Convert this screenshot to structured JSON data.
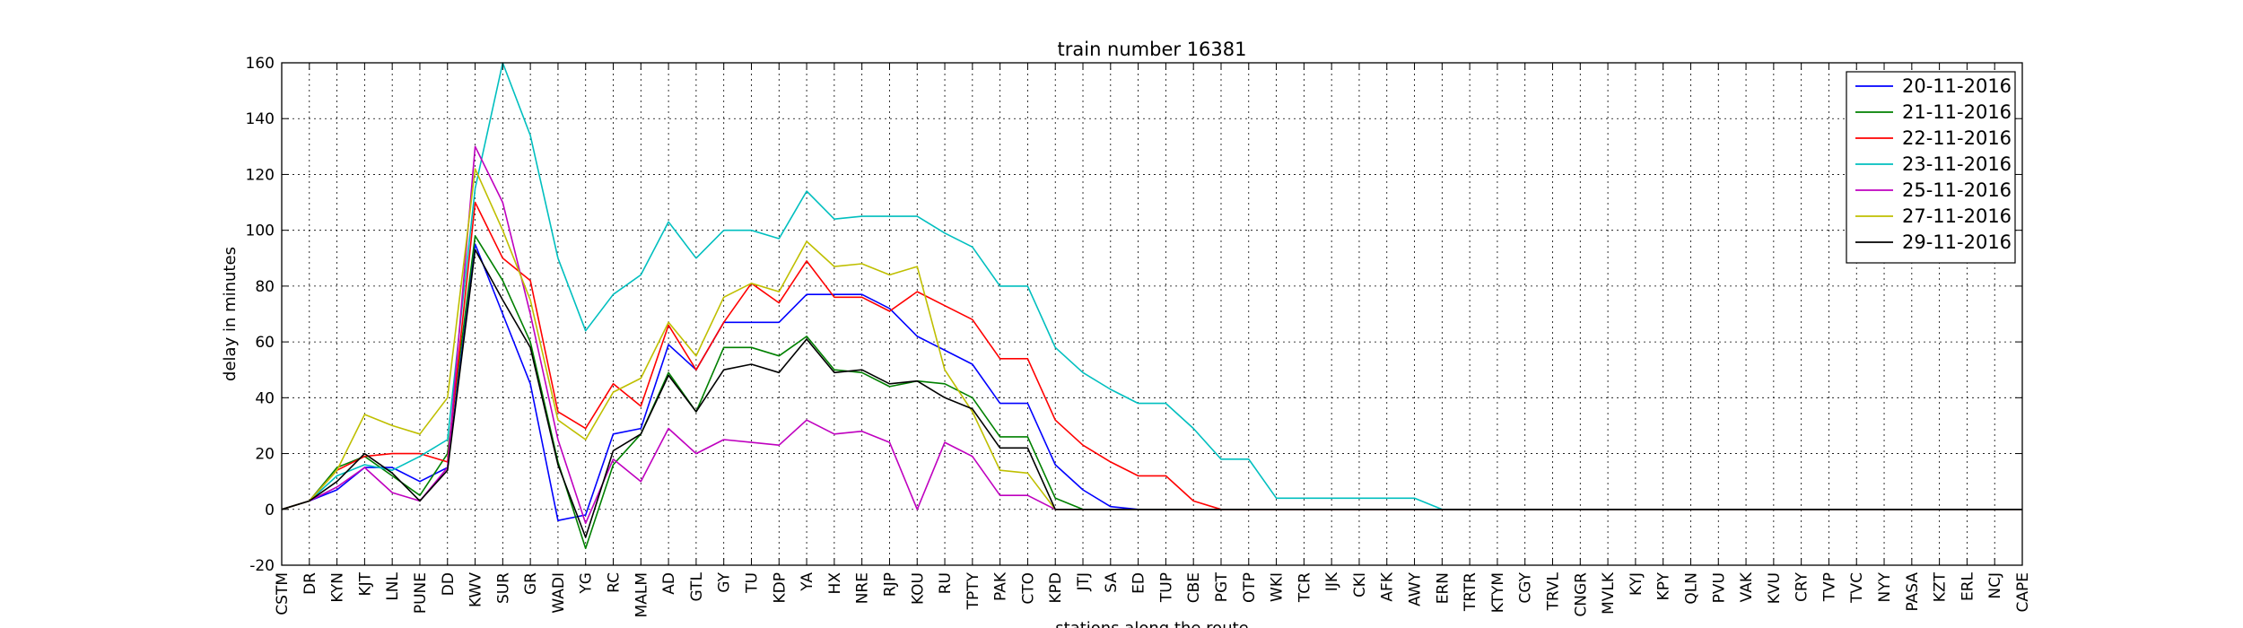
{
  "chart_data": {
    "type": "line",
    "title": "train number 16381",
    "xlabel": "stations along the route",
    "ylabel": "delay in minutes",
    "ylim": [
      -20,
      160
    ],
    "yticks": [
      -20,
      0,
      20,
      40,
      60,
      80,
      100,
      120,
      140,
      160
    ],
    "grid": true,
    "legend_position": "top-right",
    "categories": [
      "CSTM",
      "DR",
      "KYN",
      "KJT",
      "LNL",
      "PUNE",
      "DD",
      "KWV",
      "SUR",
      "GR",
      "WADI",
      "YG",
      "RC",
      "MALM",
      "AD",
      "GTL",
      "GY",
      "TU",
      "KDP",
      "YA",
      "HX",
      "NRE",
      "RJP",
      "KOU",
      "RU",
      "TPTY",
      "PAK",
      "CTO",
      "KPD",
      "JTJ",
      "SA",
      "ED",
      "TUP",
      "CBE",
      "PGT",
      "OTP",
      "WKI",
      "TCR",
      "IJK",
      "CKI",
      "AFK",
      "AWY",
      "ERN",
      "TRTR",
      "KTYM",
      "CGY",
      "TRVL",
      "CNGR",
      "MVLK",
      "KYJ",
      "KPY",
      "QLN",
      "PVU",
      "VAK",
      "KVU",
      "CRY",
      "TVP",
      "TVC",
      "NYY",
      "PASA",
      "KZT",
      "ERL",
      "NCJ",
      "CAPE"
    ],
    "series": [
      {
        "name": "20-11-2016",
        "color": "#0000ff",
        "values": [
          0,
          3,
          7,
          15,
          15,
          10,
          15,
          95,
          70,
          45,
          -4,
          -2,
          27,
          29,
          59,
          50,
          67,
          67,
          67,
          77,
          77,
          77,
          72,
          62,
          57,
          52,
          38,
          38,
          16,
          7,
          1,
          0,
          0,
          0,
          0,
          0,
          0,
          0,
          0,
          0,
          0,
          0,
          0,
          0,
          0,
          0,
          0,
          0,
          0,
          0,
          0,
          0,
          0,
          0,
          0,
          0,
          0,
          0,
          0,
          0,
          0,
          0,
          0,
          0
        ]
      },
      {
        "name": "21-11-2016",
        "color": "#008000",
        "values": [
          0,
          3,
          15,
          19,
          12,
          5,
          20,
          98,
          82,
          60,
          17,
          -14,
          16,
          27,
          49,
          35,
          58,
          58,
          55,
          62,
          50,
          49,
          44,
          46,
          45,
          40,
          26,
          26,
          4,
          0,
          0,
          0,
          0,
          0,
          0,
          0,
          0,
          0,
          0,
          0,
          0,
          0,
          0,
          0,
          0,
          0,
          0,
          0,
          0,
          0,
          0,
          0,
          0,
          0,
          0,
          0,
          0,
          0,
          0,
          0,
          0,
          0,
          0,
          0
        ]
      },
      {
        "name": "22-11-2016",
        "color": "#ff0000",
        "values": [
          0,
          3,
          14,
          19,
          20,
          20,
          17,
          110,
          90,
          82,
          35,
          29,
          45,
          37,
          66,
          50,
          67,
          81,
          74,
          89,
          76,
          76,
          71,
          78,
          73,
          68,
          54,
          54,
          32,
          23,
          17,
          12,
          12,
          3,
          0,
          0,
          0,
          0,
          0,
          0,
          0,
          0,
          0,
          0,
          0,
          0,
          0,
          0,
          0,
          0,
          0,
          0,
          0,
          0,
          0,
          0,
          0,
          0,
          0,
          0,
          0,
          0,
          0,
          0
        ]
      },
      {
        "name": "23-11-2016",
        "color": "#00bfbf",
        "values": [
          0,
          3,
          12,
          16,
          14,
          19,
          25,
          115,
          160,
          134,
          90,
          64,
          77,
          84,
          103,
          90,
          100,
          100,
          97,
          114,
          104,
          105,
          105,
          105,
          99,
          94,
          80,
          80,
          58,
          49,
          43,
          38,
          38,
          29,
          18,
          18,
          4,
          4,
          4,
          4,
          4,
          4,
          0,
          0,
          0,
          0,
          0,
          0,
          0,
          0,
          0,
          0,
          0,
          0,
          0,
          0,
          0,
          0,
          0,
          0,
          0,
          0,
          0,
          0
        ]
      },
      {
        "name": "25-11-2016",
        "color": "#bf00bf",
        "values": [
          0,
          3,
          8,
          15,
          6,
          3,
          15,
          130,
          110,
          70,
          25,
          -5,
          18,
          10,
          29,
          20,
          25,
          24,
          23,
          32,
          27,
          28,
          24,
          0,
          24,
          19,
          5,
          5,
          0,
          0,
          0,
          0,
          0,
          0,
          0,
          0,
          0,
          0,
          0,
          0,
          0,
          0,
          0,
          0,
          0,
          0,
          0,
          0,
          0,
          0,
          0,
          0,
          0,
          0,
          0,
          0,
          0,
          0,
          0,
          0,
          0,
          0,
          0,
          0
        ]
      },
      {
        "name": "27-11-2016",
        "color": "#bfbf00",
        "values": [
          0,
          3,
          14,
          34,
          30,
          27,
          40,
          122,
          100,
          75,
          32,
          25,
          42,
          47,
          67,
          55,
          76,
          81,
          78,
          96,
          87,
          88,
          84,
          87,
          50,
          35,
          14,
          13,
          0,
          0,
          0,
          0,
          0,
          0,
          0,
          0,
          0,
          0,
          0,
          0,
          0,
          0,
          0,
          0,
          0,
          0,
          0,
          0,
          0,
          0,
          0,
          0,
          0,
          0,
          0,
          0,
          0,
          0,
          0,
          0,
          0,
          0,
          0,
          0
        ]
      },
      {
        "name": "29-11-2016",
        "color": "#000000",
        "values": [
          0,
          3,
          10,
          20,
          13,
          3,
          14,
          93,
          75,
          58,
          16,
          -10,
          21,
          27,
          48,
          35,
          50,
          52,
          49,
          61,
          49,
          50,
          45,
          46,
          40,
          36,
          22,
          22,
          0,
          0,
          0,
          0,
          0,
          0,
          0,
          0,
          0,
          0,
          0,
          0,
          0,
          0,
          0,
          0,
          0,
          0,
          0,
          0,
          0,
          0,
          0,
          0,
          0,
          0,
          0,
          0,
          0,
          0,
          0,
          0,
          0,
          0,
          0,
          0
        ]
      }
    ]
  }
}
